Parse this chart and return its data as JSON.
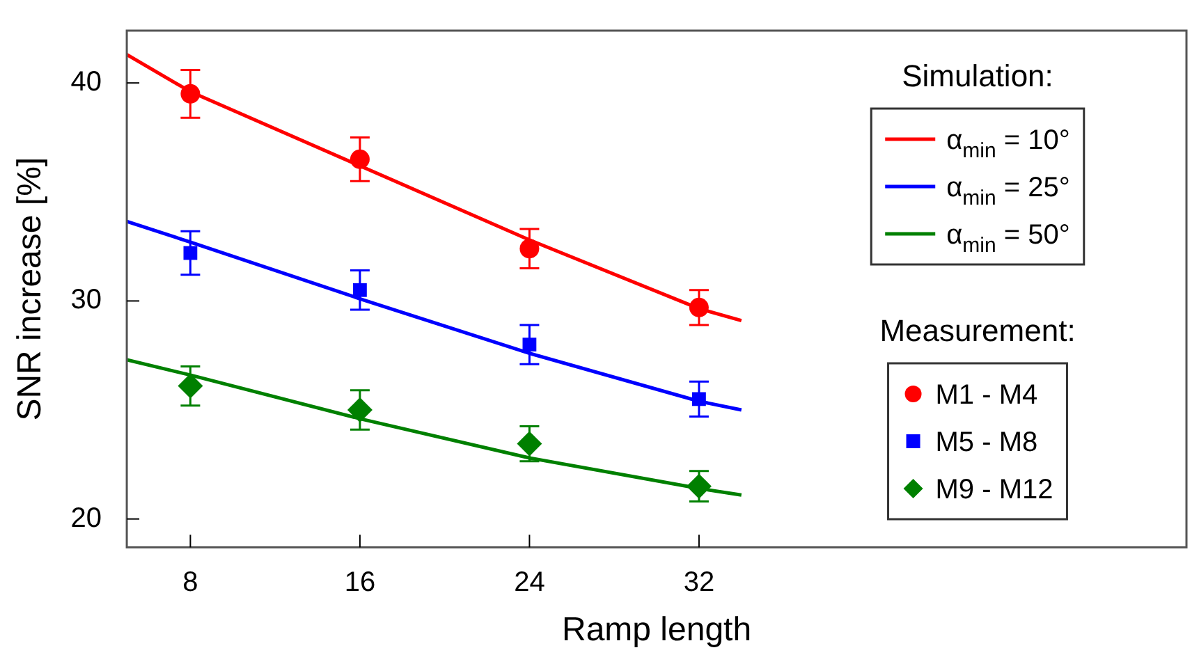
{
  "chart_data": {
    "type": "scatter",
    "xlabel": "Ramp length",
    "ylabel": "SNR increase [%]",
    "legend_title": "Simulation:",
    "annotations": [
      "Measurement:"
    ],
    "xlim": [
      5,
      55
    ],
    "xticks": [
      8,
      16,
      24,
      32
    ],
    "ylim": [
      18.7,
      42.4
    ],
    "yticks": [
      20,
      30,
      40
    ],
    "grid": false,
    "legend": "right",
    "series": [
      {
        "type": "line",
        "name": "α$_{min}$ = 10°",
        "color": "#ff0000",
        "marker": "none",
        "x": [
          5,
          8,
          16,
          24,
          32,
          34
        ],
        "values": [
          41.3,
          39.6,
          36.2,
          32.8,
          29.65,
          29.1
        ]
      },
      {
        "type": "line",
        "name": "α$_{min}$ = 25°",
        "color": "#0000ff",
        "marker": "none",
        "x": [
          5,
          8,
          16,
          24,
          32,
          34
        ],
        "values": [
          33.65,
          32.7,
          30.1,
          27.6,
          25.4,
          25.0
        ]
      },
      {
        "type": "line",
        "name": "α$_{min}$ = 50°",
        "color": "#008000",
        "marker": "none",
        "x": [
          5,
          8,
          16,
          24,
          32,
          34
        ],
        "values": [
          27.3,
          26.6,
          24.6,
          22.8,
          21.4,
          21.1
        ]
      },
      {
        "name": "M1 - M4",
        "color": "#ff0000",
        "marker": "circle",
        "x": [
          8,
          16,
          24,
          32
        ],
        "values": [
          39.5,
          36.5,
          32.4,
          29.7
        ],
        "errors": [
          1.1,
          1.0,
          0.9,
          0.8
        ]
      },
      {
        "name": "M5 - M8",
        "color": "#0000ff",
        "marker": "square",
        "x": [
          8,
          16,
          24,
          32
        ],
        "values": [
          32.2,
          30.5,
          28.0,
          25.5
        ],
        "errors": [
          1.0,
          0.9,
          0.9,
          0.8
        ]
      },
      {
        "name": "M9 - M12",
        "color": "#008000",
        "marker": "diamond",
        "x": [
          8,
          16,
          24,
          32
        ],
        "values": [
          26.1,
          25.0,
          23.45,
          21.5
        ],
        "errors": [
          0.9,
          0.9,
          0.8,
          0.7
        ]
      }
    ]
  }
}
